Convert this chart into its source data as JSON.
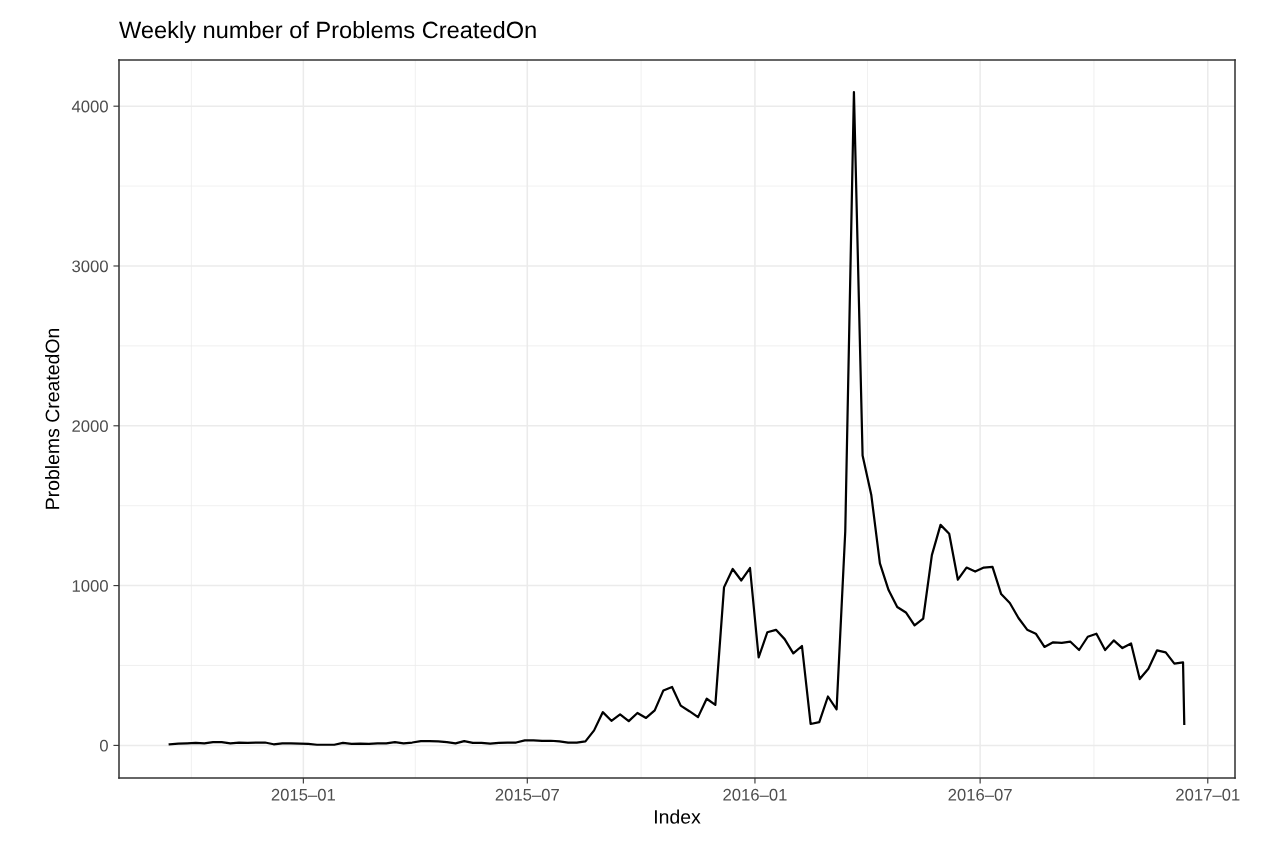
{
  "chart_data": {
    "type": "line",
    "title": "Weekly number of Problems CreatedOn",
    "xlabel": "Index",
    "ylabel": "Problems CreatedOn",
    "x": [
      "2014-09-15",
      "2014-09-22",
      "2014-09-29",
      "2014-10-06",
      "2014-10-13",
      "2014-10-20",
      "2014-10-27",
      "2014-11-03",
      "2014-11-10",
      "2014-11-17",
      "2014-11-24",
      "2014-12-01",
      "2014-12-08",
      "2014-12-15",
      "2014-12-22",
      "2014-12-29",
      "2015-01-05",
      "2015-01-12",
      "2015-01-19",
      "2015-01-26",
      "2015-02-02",
      "2015-02-09",
      "2015-02-16",
      "2015-02-23",
      "2015-03-02",
      "2015-03-09",
      "2015-03-16",
      "2015-03-23",
      "2015-03-30",
      "2015-04-06",
      "2015-04-13",
      "2015-04-20",
      "2015-04-27",
      "2015-05-04",
      "2015-05-11",
      "2015-05-18",
      "2015-05-25",
      "2015-06-01",
      "2015-06-08",
      "2015-06-15",
      "2015-06-22",
      "2015-06-29",
      "2015-07-06",
      "2015-07-13",
      "2015-07-20",
      "2015-07-27",
      "2015-08-03",
      "2015-08-10",
      "2015-08-17",
      "2015-08-24",
      "2015-08-31",
      "2015-09-07",
      "2015-09-14",
      "2015-09-21",
      "2015-09-28",
      "2015-10-05",
      "2015-10-12",
      "2015-10-19",
      "2015-10-26",
      "2015-11-02",
      "2015-11-09",
      "2015-11-16",
      "2015-11-23",
      "2015-11-30",
      "2015-12-07",
      "2015-12-14",
      "2015-12-21",
      "2015-12-28",
      "2016-01-04",
      "2016-01-11",
      "2016-01-18",
      "2016-01-25",
      "2016-02-01",
      "2016-02-08",
      "2016-02-15",
      "2016-02-22",
      "2016-02-29",
      "2016-03-07",
      "2016-03-14",
      "2016-03-21",
      "2016-03-28",
      "2016-04-04",
      "2016-04-11",
      "2016-04-18",
      "2016-04-25",
      "2016-05-02",
      "2016-05-09",
      "2016-05-16",
      "2016-05-23",
      "2016-05-30",
      "2016-06-06",
      "2016-06-13",
      "2016-06-20",
      "2016-06-27",
      "2016-07-04",
      "2016-07-11",
      "2016-07-18",
      "2016-07-25",
      "2016-08-01",
      "2016-08-08",
      "2016-08-15",
      "2016-08-22",
      "2016-08-29",
      "2016-09-05",
      "2016-09-12",
      "2016-09-19",
      "2016-09-26",
      "2016-10-03",
      "2016-10-10",
      "2016-10-17",
      "2016-10-24",
      "2016-10-31",
      "2016-11-07",
      "2016-11-14",
      "2016-11-21",
      "2016-11-28",
      "2016-12-05",
      "2016-12-12",
      "2016-12-13"
    ],
    "series": [
      {
        "color": "#000000",
        "values": [
          7,
          11,
          13,
          16,
          13,
          20,
          20,
          13,
          18,
          16,
          18,
          18,
          7,
          13,
          13,
          11,
          9,
          4,
          4,
          4,
          16,
          9,
          11,
          9,
          13,
          13,
          20,
          13,
          18,
          27,
          27,
          25,
          20,
          13,
          27,
          16,
          16,
          11,
          16,
          18,
          18,
          31,
          31,
          29,
          29,
          25,
          18,
          18,
          25,
          94,
          208,
          154,
          194,
          152,
          203,
          172,
          219,
          344,
          366,
          249,
          214,
          177,
          292,
          254,
          989,
          1104,
          1032,
          1110,
          550,
          708,
          723,
          665,
          576,
          622,
          134,
          146,
          306,
          226,
          1340,
          4088,
          1814,
          1569,
          1139,
          972,
          866,
          832,
          751,
          794,
          1191,
          1380,
          1324,
          1037,
          1113,
          1088,
          1113,
          1117,
          947,
          891,
          797,
          724,
          699,
          616,
          645,
          641,
          649,
          597,
          680,
          699,
          597,
          657,
          609,
          638,
          415,
          480,
          595,
          582,
          512,
          520,
          134
        ]
      }
    ],
    "xlim": [
      "2014-08-05",
      "2017-01-23"
    ],
    "xticks": [
      {
        "value": "2015-01-01",
        "label": "2015–01"
      },
      {
        "value": "2015-07-01",
        "label": "2015–07"
      },
      {
        "value": "2016-01-01",
        "label": "2016–01"
      },
      {
        "value": "2016-07-01",
        "label": "2016–07"
      },
      {
        "value": "2017-01-01",
        "label": "2017–01"
      }
    ],
    "ylim": [
      -204,
      4289
    ],
    "yticks": [
      0,
      1000,
      2000,
      3000,
      4000
    ],
    "grid": true,
    "line_style": "solid",
    "marker": "none"
  }
}
